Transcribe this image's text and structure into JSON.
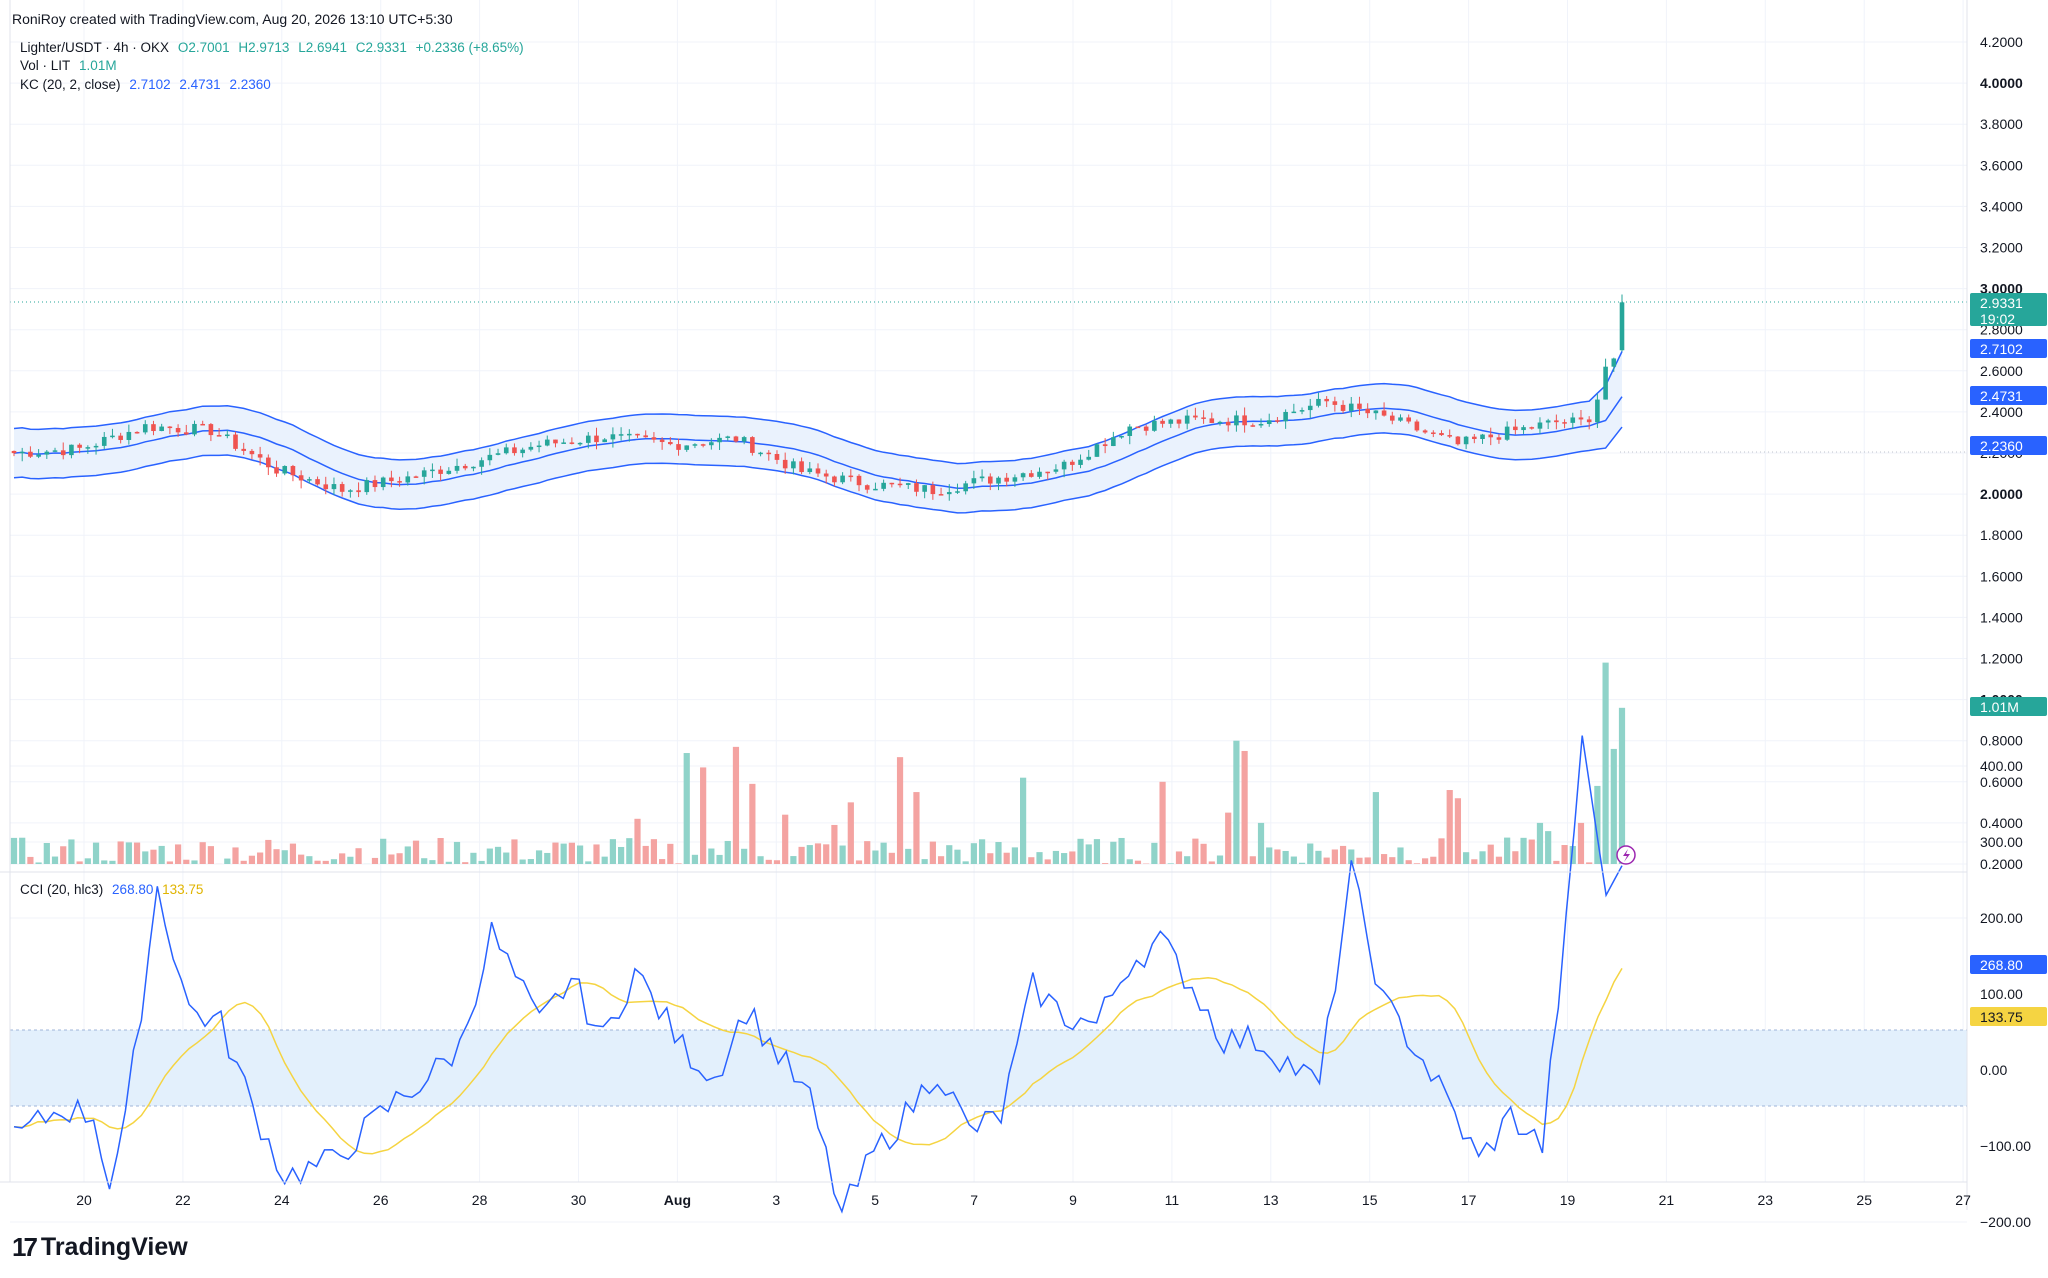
{
  "header": {
    "created_by": "RoniRoy created with TradingView.com, Aug 20, 2026 13:10 UTC+5:30"
  },
  "legend": {
    "symbol": "Lighter/USDT · 4h · OKX",
    "o": "O2.7001",
    "h": "H2.9713",
    "l": "L2.6941",
    "c": "C2.9331",
    "change": "+0.2336 (+8.65%)",
    "vol_label": "Vol · LIT",
    "vol_value": "1.01M",
    "kc_label": "KC (20, 2, close)",
    "kc_upper": "2.7102",
    "kc_mid": "2.4731",
    "kc_lower": "2.2360",
    "cci_label": "CCI (20, hlc3)",
    "cci_value": "268.80",
    "cci_ma": "133.75"
  },
  "brand": {
    "name": "TradingView"
  },
  "colors": {
    "up": "#26a69a",
    "down": "#ef5350",
    "vol_up": "#8fd3c9",
    "vol_down": "#f4a3a1",
    "kc_line": "#2962ff",
    "kc_fill": "#eaf2fd",
    "cci": "#2962ff",
    "cci_ma": "#f5d442",
    "cci_band": "#e3f0fc",
    "grid": "#f0f3fa",
    "axis_text": "#131722"
  },
  "price_axis": {
    "ticks": [
      "4.2000",
      "4.0000",
      "3.8000",
      "3.6000",
      "3.4000",
      "3.2000",
      "3.0000",
      "2.8000",
      "2.6000",
      "2.4000",
      "2.2000",
      "2.0000",
      "1.8000",
      "1.6000",
      "1.4000",
      "1.2000",
      "1.0000",
      "0.8000",
      "0.6000",
      "0.4000",
      "0.2000"
    ],
    "bold": [
      "4.0000",
      "3.0000",
      "2.0000",
      "1.0000"
    ]
  },
  "cci_axis": {
    "ticks": [
      "400.00",
      "300.00",
      "200.00",
      "100.00",
      "0.00",
      "−100.00",
      "−200.00"
    ]
  },
  "time_axis": {
    "labels": [
      "20",
      "22",
      "24",
      "26",
      "28",
      "30",
      "Aug",
      "3",
      "5",
      "7",
      "9",
      "11",
      "13",
      "15",
      "17",
      "19",
      "21",
      "23",
      "25",
      "27"
    ]
  },
  "badges": {
    "price": "2.9331",
    "countdown": "19:02",
    "kc_upper": "2.7102",
    "kc_mid": "2.4731",
    "kc_lower": "2.2360",
    "volume": "1.01M",
    "cci": "268.80",
    "cci_ma": "133.75"
  },
  "chart_data": [
    {
      "type": "candlestick",
      "title": "Lighter/USDT · 4h · OKX",
      "x_range": [
        "Jul 18",
        "Aug 20"
      ],
      "ylim": [
        0.2,
        4.2
      ],
      "series_summary": [
        {
          "date": "Jul 19",
          "close": 2.2
        },
        {
          "date": "Jul 21",
          "close": 2.22
        },
        {
          "date": "Jul 22",
          "close": 2.33
        },
        {
          "date": "Jul 23",
          "close": 2.31
        },
        {
          "date": "Jul 25",
          "close": 2.02
        },
        {
          "date": "Jul 27",
          "close": 2.1
        },
        {
          "date": "Jul 28",
          "close": 2.22
        },
        {
          "date": "Jul 29",
          "close": 2.3
        },
        {
          "date": "Jul 31",
          "close": 2.22
        },
        {
          "date": "Aug 1",
          "close": 2.1
        },
        {
          "date": "Aug 3",
          "close": 2.06
        },
        {
          "date": "Aug 4",
          "close": 2.01
        },
        {
          "date": "Aug 6",
          "close": 2.12
        },
        {
          "date": "Aug 7",
          "close": 2.33
        },
        {
          "date": "Aug 8",
          "close": 2.36
        },
        {
          "date": "Aug 10",
          "close": 2.36
        },
        {
          "date": "Aug 11",
          "close": 2.46
        },
        {
          "date": "Aug 12",
          "close": 2.38
        },
        {
          "date": "Aug 14",
          "close": 2.24
        },
        {
          "date": "Aug 16",
          "close": 2.31
        },
        {
          "date": "Aug 18",
          "close": 2.35
        },
        {
          "date": "Aug 19",
          "close": 2.35
        },
        {
          "date": "Aug 20",
          "close": 2.9331
        }
      ],
      "last_bar": {
        "open": 2.7001,
        "high": 2.9713,
        "low": 2.6941,
        "close": 2.9331
      },
      "keltner": {
        "upper": 2.7102,
        "middle": 2.4731,
        "lower": 2.236
      }
    },
    {
      "type": "bar",
      "title": "Vol · LIT",
      "last_value": "1.01M",
      "max_value_m": 1.18
    },
    {
      "type": "line",
      "title": "CCI (20, hlc3)",
      "series": [
        {
          "name": "CCI",
          "last": 268.8
        },
        {
          "name": "MA",
          "last": 133.75
        }
      ],
      "ylim": [
        -200,
        400
      ],
      "band": [
        -100,
        100
      ]
    }
  ]
}
